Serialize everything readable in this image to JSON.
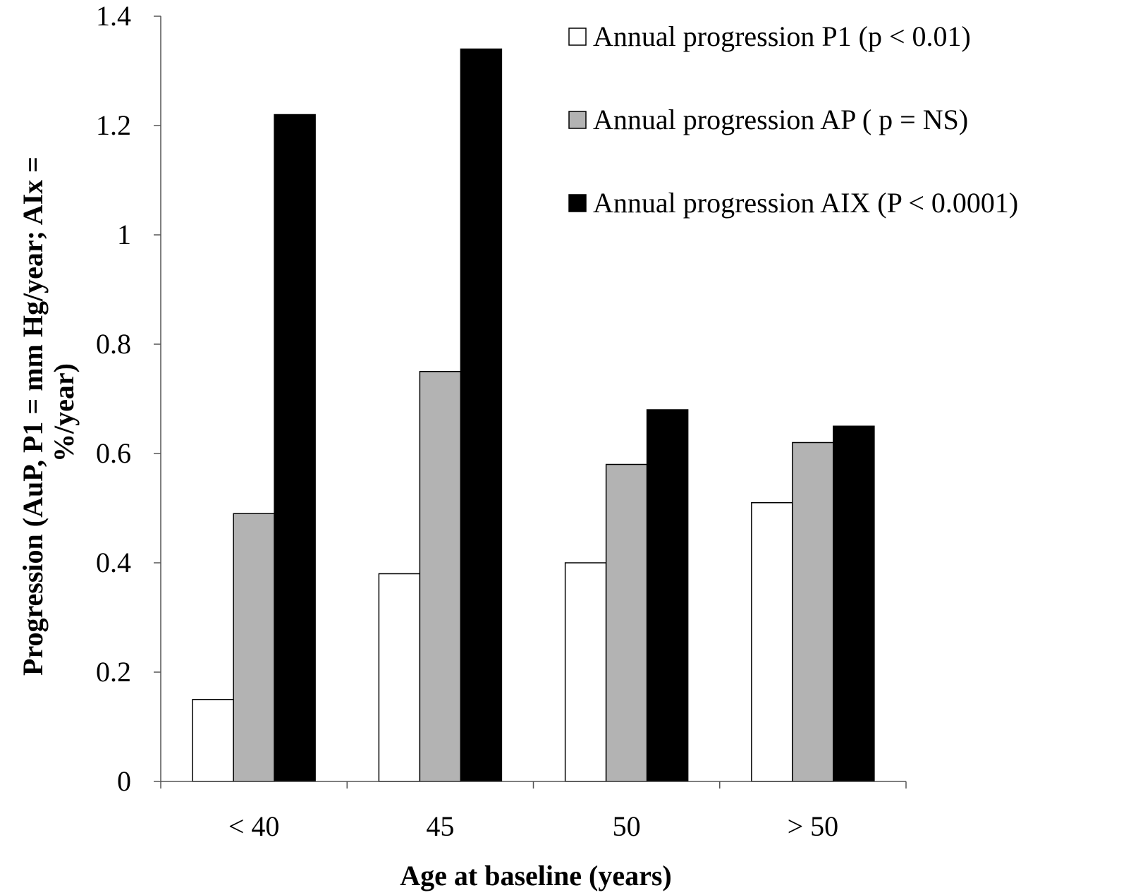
{
  "chart_data": {
    "type": "bar",
    "categories": [
      "< 40",
      "45",
      "50",
      "> 50"
    ],
    "series": [
      {
        "name": "Annual progression P1 (p < 0.01)",
        "values": [
          0.15,
          0.38,
          0.4,
          0.51
        ],
        "color": "#ffffff"
      },
      {
        "name": "Annual progression AP ( p = NS)",
        "values": [
          0.49,
          0.75,
          0.58,
          0.62
        ],
        "color": "#b3b3b3"
      },
      {
        "name": "Annual progression AIX (P < 0.0001)",
        "values": [
          1.22,
          1.34,
          0.68,
          0.65
        ],
        "color": "#000000"
      }
    ],
    "xlabel": "Age at baseline (years)",
    "ylabel_lines": [
      "Progression (AuP, P1 = mm Hg/year; AIx =",
      "%/year)"
    ],
    "ylim": [
      0,
      1.4
    ],
    "yticks": [
      0,
      0.2,
      0.4,
      0.6,
      0.8,
      1,
      1.2,
      1.4
    ],
    "ytick_labels": [
      "0",
      "0.2",
      "0.4",
      "0.6",
      "0.8",
      "1",
      "1.2",
      "1.4"
    ],
    "grid": false,
    "legend_position": "top-right"
  }
}
